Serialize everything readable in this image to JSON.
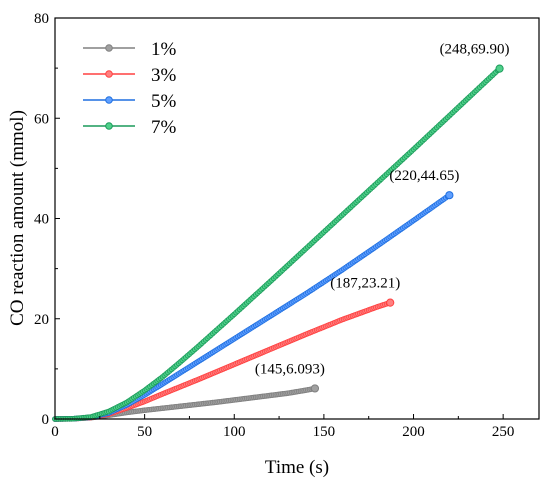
{
  "chart_data": {
    "type": "line",
    "xlabel": "Time (s)",
    "ylabel": "CO reaction amount (mmol)",
    "xlim": [
      0,
      270
    ],
    "ylim": [
      0,
      80
    ],
    "xticks": [
      "0",
      "50",
      "100",
      "150",
      "200",
      "250"
    ],
    "yticks": [
      "0",
      "20",
      "40",
      "60",
      "80"
    ],
    "legend_position": "top-left",
    "series": [
      {
        "name": "1%",
        "color": "#808080",
        "marker_face": "#a0a0a0",
        "x": [
          0,
          10,
          20,
          30,
          40,
          50,
          60,
          70,
          80,
          90,
          100,
          110,
          120,
          130,
          140,
          145
        ],
        "y": [
          0,
          0.05,
          0.25,
          0.75,
          1.3,
          1.75,
          2.15,
          2.55,
          2.95,
          3.35,
          3.8,
          4.25,
          4.7,
          5.15,
          5.75,
          6.093
        ],
        "end_label": "(145,6.093)"
      },
      {
        "name": "3%",
        "color": "#ff4040",
        "marker_face": "#ff8080",
        "x": [
          0,
          10,
          20,
          30,
          40,
          50,
          60,
          80,
          100,
          120,
          140,
          160,
          180,
          187
        ],
        "y": [
          0,
          0.05,
          0.3,
          1.0,
          2.2,
          3.5,
          5.0,
          7.9,
          10.9,
          13.9,
          16.9,
          19.8,
          22.4,
          23.21
        ],
        "end_label": "(187,23.21)"
      },
      {
        "name": "5%",
        "color": "#1f6fe0",
        "marker_face": "#5f9fff",
        "x": [
          0,
          10,
          20,
          30,
          40,
          50,
          60,
          80,
          100,
          120,
          140,
          160,
          180,
          200,
          220
        ],
        "y": [
          0,
          0.05,
          0.35,
          1.2,
          2.8,
          4.8,
          7.0,
          11.5,
          16.0,
          20.5,
          25.0,
          29.7,
          34.6,
          39.6,
          44.65
        ],
        "end_label": "(220,44.65)"
      },
      {
        "name": "7%",
        "color": "#1a9a5a",
        "marker_face": "#4fd08a",
        "x": [
          0,
          10,
          20,
          30,
          40,
          50,
          60,
          70,
          80,
          100,
          120,
          140,
          160,
          180,
          200,
          220,
          248
        ],
        "y": [
          0,
          0.05,
          0.4,
          1.5,
          3.3,
          5.7,
          8.4,
          11.4,
          14.5,
          20.9,
          27.4,
          34.0,
          40.6,
          47.2,
          53.8,
          60.5,
          69.9
        ],
        "end_label": "(248,69.90)"
      }
    ]
  }
}
